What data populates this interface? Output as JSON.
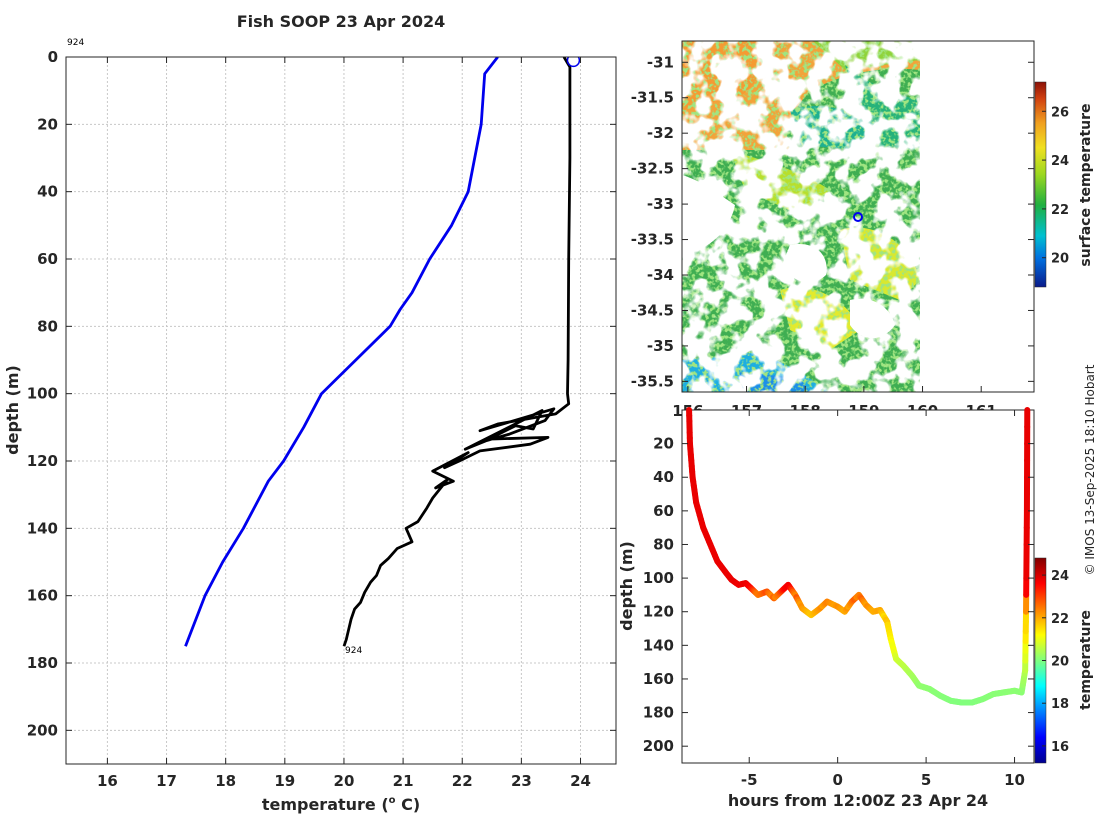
{
  "title": "Fish SOOP 23 Apr 2024",
  "credit": "© IMOS 13-Sep-2025 18:10 Hobart",
  "chart_data": [
    {
      "type": "line",
      "name": "depth-temperature-profile",
      "xlabel": "temperature (°C)",
      "xlabel_main": "temperature (",
      "xlabel_sup": "o",
      "xlabel_end": " C)",
      "ylabel": "depth (m)",
      "xlim": [
        15.3,
        24.6
      ],
      "ylim": [
        210,
        0
      ],
      "xticks": [
        16,
        17,
        18,
        19,
        20,
        21,
        22,
        23,
        24
      ],
      "yticks": [
        0,
        20,
        40,
        60,
        80,
        100,
        120,
        140,
        160,
        180,
        200
      ],
      "grid": true,
      "top_label": "924",
      "bottom_label": "924",
      "marker": {
        "x": 23.88,
        "y": 1,
        "style": "open-circle"
      },
      "series": [
        {
          "name": "climatology",
          "color": "#0000ee",
          "points": [
            [
              22.6,
              0
            ],
            [
              22.38,
              5
            ],
            [
              22.32,
              20
            ],
            [
              22.1,
              40
            ],
            [
              21.82,
              50
            ],
            [
              21.45,
              60
            ],
            [
              21.15,
              70
            ],
            [
              20.95,
              75
            ],
            [
              20.78,
              80
            ],
            [
              20.2,
              90
            ],
            [
              19.62,
              100
            ],
            [
              19.32,
              110
            ],
            [
              18.98,
              120
            ],
            [
              18.72,
              126
            ],
            [
              18.3,
              140
            ],
            [
              17.95,
              150
            ],
            [
              17.65,
              160
            ],
            [
              17.32,
              175
            ]
          ]
        },
        {
          "name": "sensor-profiles",
          "color": "#000000",
          "points": [
            [
              23.72,
              0
            ],
            [
              23.82,
              3
            ],
            [
              23.82,
              30
            ],
            [
              23.8,
              60
            ],
            [
              23.79,
              90
            ],
            [
              23.78,
              100
            ],
            [
              23.8,
              103
            ],
            [
              23.58,
              106
            ],
            [
              23.1,
              107.5
            ],
            [
              22.6,
              109
            ],
            [
              22.3,
              111
            ],
            [
              23.55,
              104.5
            ],
            [
              23.4,
              108
            ],
            [
              22.8,
              112
            ],
            [
              22.4,
              114
            ],
            [
              22.05,
              116.5
            ],
            [
              23.35,
              105
            ],
            [
              23.2,
              110.5
            ],
            [
              22.9,
              109.5
            ],
            [
              22.45,
              113.5
            ],
            [
              23.45,
              113
            ],
            [
              23.15,
              115
            ],
            [
              22.3,
              117
            ],
            [
              21.95,
              120
            ],
            [
              21.7,
              122
            ],
            [
              22.1,
              117.5
            ],
            [
              21.5,
              123
            ],
            [
              21.85,
              126
            ],
            [
              21.55,
              128
            ],
            [
              21.75,
              125.5
            ],
            [
              21.5,
              131
            ],
            [
              21.4,
              134
            ],
            [
              21.25,
              138
            ],
            [
              21.05,
              140
            ],
            [
              21.15,
              144
            ],
            [
              20.9,
              146
            ],
            [
              20.75,
              149
            ],
            [
              20.62,
              151
            ],
            [
              20.55,
              154
            ],
            [
              20.45,
              156
            ],
            [
              20.35,
              159
            ],
            [
              20.28,
              162
            ],
            [
              20.18,
              164
            ],
            [
              20.12,
              167
            ],
            [
              20.08,
              170
            ],
            [
              20.04,
              173
            ],
            [
              20.0,
              175
            ]
          ]
        }
      ]
    },
    {
      "type": "heatmap",
      "name": "surface-temperature-map",
      "xlim": [
        155.9,
        161.9
      ],
      "ylim": [
        -35.65,
        -30.7
      ],
      "xtick_labels": [
        "156",
        "157",
        "158",
        "159",
        "160",
        "161"
      ],
      "ytick_labels": [
        "-31",
        "-31.5",
        "-32",
        "-32.5",
        "-33",
        "-33.5",
        "-34",
        "-34.5",
        "-35",
        "-35.5"
      ],
      "data_extent_lon": [
        155.9,
        160.0
      ],
      "position_marker": {
        "lon": 158.95,
        "lat": -33.15,
        "style": "open-circle"
      },
      "colorbar": {
        "label": "surface temperature",
        "ticks": [
          "20",
          "22",
          "24",
          "26"
        ],
        "range": [
          18.8,
          27.2
        ]
      }
    },
    {
      "type": "line",
      "name": "depth-time-trace",
      "xlabel": "hours from 12:00Z 23 Apr 24",
      "ylabel": "depth (m)",
      "xlim": [
        -8.8,
        11.1
      ],
      "ylim": [
        210,
        0
      ],
      "xtick_labels": [
        "-5",
        "0",
        "5",
        "10"
      ],
      "ytick_labels": [
        "20",
        "40",
        "60",
        "80",
        "100",
        "120",
        "140",
        "160",
        "180",
        "200"
      ],
      "colorbar": {
        "label": "temperature",
        "ticks": [
          "16",
          "18",
          "20",
          "22",
          "24"
        ],
        "range": [
          15.2,
          24.8
        ]
      },
      "points": [
        [
          -8.4,
          0
        ],
        [
          -8.35,
          20
        ],
        [
          -8.2,
          40
        ],
        [
          -8.0,
          55
        ],
        [
          -7.6,
          70
        ],
        [
          -7.2,
          80
        ],
        [
          -6.8,
          90
        ],
        [
          -6.3,
          97
        ],
        [
          -6.0,
          101
        ],
        [
          -5.6,
          104
        ],
        [
          -5.2,
          103
        ],
        [
          -4.9,
          106
        ],
        [
          -4.5,
          110
        ],
        [
          -4.0,
          108
        ],
        [
          -3.6,
          112
        ],
        [
          -3.2,
          108
        ],
        [
          -2.8,
          104
        ],
        [
          -2.4,
          110
        ],
        [
          -2.0,
          118
        ],
        [
          -1.5,
          122
        ],
        [
          -1.0,
          118
        ],
        [
          -0.6,
          114
        ],
        [
          0.0,
          117
        ],
        [
          0.4,
          120
        ],
        [
          0.8,
          114
        ],
        [
          1.2,
          110
        ],
        [
          1.6,
          116
        ],
        [
          2.0,
          120
        ],
        [
          2.4,
          119
        ],
        [
          2.8,
          126
        ],
        [
          3.0,
          136
        ],
        [
          3.3,
          148
        ],
        [
          3.7,
          152
        ],
        [
          4.2,
          158
        ],
        [
          4.6,
          164
        ],
        [
          5.2,
          166
        ],
        [
          5.8,
          170
        ],
        [
          6.4,
          173
        ],
        [
          7.0,
          174
        ],
        [
          7.6,
          174
        ],
        [
          8.2,
          172
        ],
        [
          8.8,
          169
        ],
        [
          9.4,
          168
        ],
        [
          10.0,
          167
        ],
        [
          10.4,
          168
        ],
        [
          10.6,
          155
        ],
        [
          10.65,
          120
        ],
        [
          10.7,
          60
        ],
        [
          10.72,
          0
        ]
      ]
    }
  ]
}
